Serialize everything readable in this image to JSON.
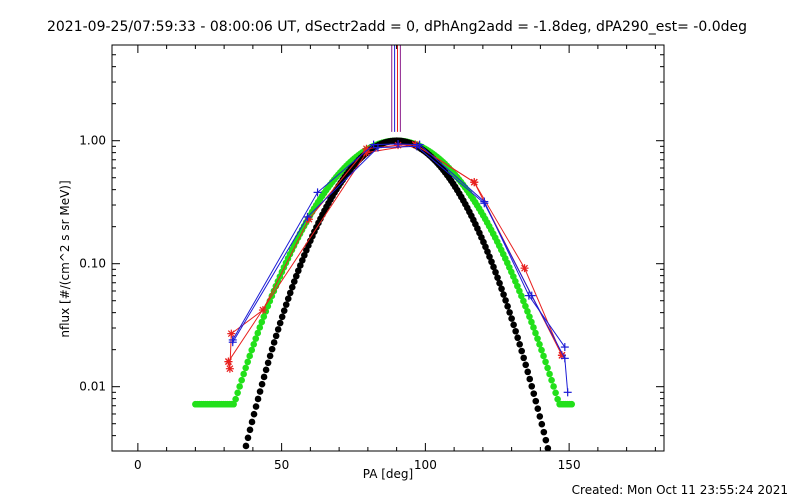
{
  "header": {
    "title": "2021-09-25/07:59:33 - 08:00:06 UT, dSectr2add = 0, dPhAng2add = -1.8deg, dPA290_est= -0.0deg"
  },
  "footer": {
    "created": "Created: Mon Oct 11 23:55:24 2021"
  },
  "chart_data": {
    "type": "scatter",
    "xlabel": "PA [deg]",
    "ylabel": "nflux [#/(cm^2 s sr MeV)]",
    "xlim": [
      -9,
      183
    ],
    "ylim": [
      0.003,
      6.0
    ],
    "yscale": "log",
    "grid": false,
    "x_ticks": [
      0,
      50,
      100,
      150
    ],
    "x_tick_labels": [
      "0",
      "50",
      "100",
      "150"
    ],
    "y_ticks": [
      0.01,
      0.1,
      1.0
    ],
    "y_tick_labels": [
      "0.01",
      "0.10",
      "1.00"
    ],
    "colors": {
      "frame": "#000000",
      "red_series": "#e8201f",
      "blue_series": "#1b1bd6",
      "fit_black": "#000000",
      "fit_green": "#22e01a",
      "vertical_lines": [
        "#8a1a8a",
        "#1b1bd6",
        "#e8201f",
        "#8a1a8a"
      ]
    },
    "vertical_lines_x": [
      88.3,
      89.3,
      90.3,
      91.3
    ],
    "series": [
      {
        "marker": "asterisk",
        "color": "#e8201f",
        "groups": [
          {
            "x": [
              31.5,
              32,
              32.5,
              43.5,
              59.5,
              79.5,
              90.5,
              96.5,
              117,
              134.5,
              147.5
            ],
            "y": [
              0.016,
              0.014,
              0.027,
              0.042,
              0.23,
              0.86,
              0.92,
              0.93,
              0.46,
              0.092,
              0.018
            ]
          },
          {
            "x": [
              31.5,
              79.5,
              96.5,
              117,
              147.5
            ],
            "y": [
              0.016,
              0.8,
              0.93,
              0.46,
              0.018
            ]
          }
        ]
      },
      {
        "marker": "plus",
        "color": "#1b1bd6",
        "groups": [
          {
            "x": [
              33,
              62.5,
              82,
              90.5,
              98,
              120.5,
              136,
              148.5
            ],
            "y": [
              0.024,
              0.38,
              0.93,
              0.94,
              0.93,
              0.32,
              0.055,
              0.021
            ]
          },
          {
            "x": [
              33,
              59,
              83.5,
              97,
              120.5,
              137,
              148.5,
              149.5
            ],
            "y": [
              0.023,
              0.24,
              0.88,
              0.9,
              0.31,
              0.055,
              0.017,
              0.009
            ]
          }
        ]
      }
    ],
    "fit_curves": [
      {
        "name": "",
        "color": "#000000",
        "x_range": [
          32,
          149
        ],
        "center": 90.0,
        "sigma": 15.5,
        "peak": 1.0
      },
      {
        "name": "",
        "color": "#22e01a",
        "x_range": [
          20,
          151
        ],
        "center": 90.0,
        "sigma": 18.0,
        "peak": 1.0,
        "floor": 0.0072
      }
    ]
  }
}
